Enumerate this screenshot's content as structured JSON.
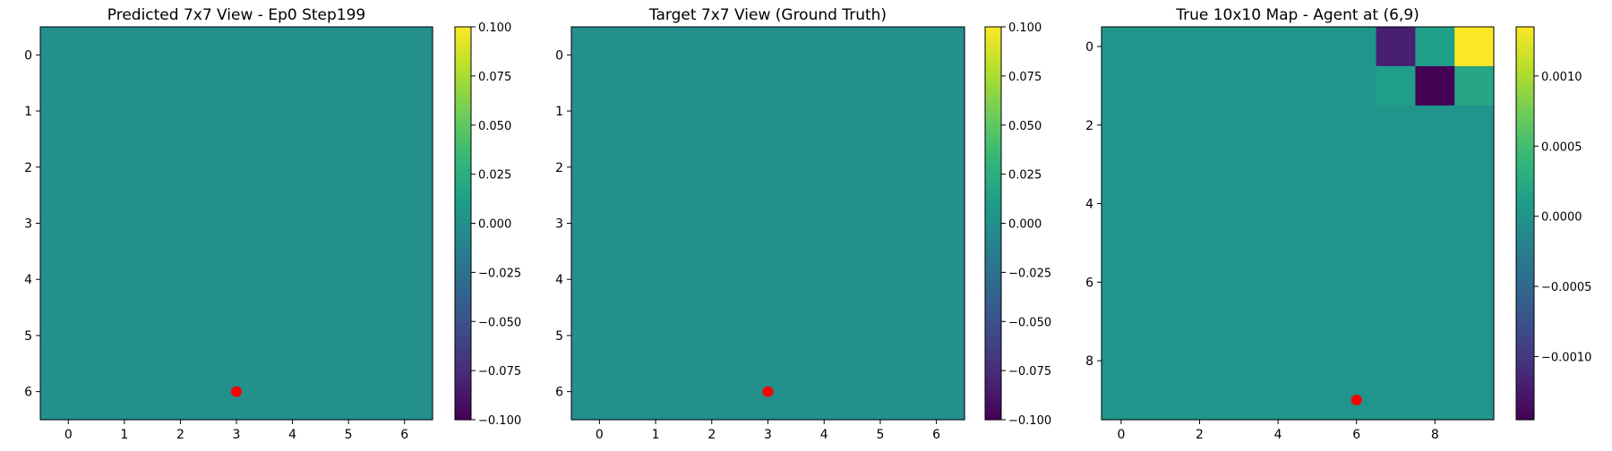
{
  "chart_data": [
    {
      "type": "heatmap",
      "title": "Predicted 7x7 View - Ep0 Step199",
      "xticks": [
        "0",
        "1",
        "2",
        "3",
        "4",
        "5",
        "6"
      ],
      "yticks": [
        "0",
        "1",
        "2",
        "3",
        "4",
        "5",
        "6"
      ],
      "grid_size": [
        7,
        7
      ],
      "values": [
        [
          0,
          0,
          0,
          0,
          0,
          0,
          0
        ],
        [
          0,
          0,
          0,
          0,
          0,
          0,
          0
        ],
        [
          0,
          0,
          0,
          0,
          0,
          0,
          0
        ],
        [
          0,
          0,
          0,
          0,
          0,
          0,
          0
        ],
        [
          0,
          0,
          0,
          0,
          0,
          0,
          0
        ],
        [
          0,
          0,
          0,
          0,
          0,
          0,
          0
        ],
        [
          0,
          0,
          0,
          0,
          0,
          0,
          0
        ]
      ],
      "marker": {
        "x": 3,
        "y": 6,
        "color": "#ff0000"
      },
      "colorbar": {
        "min": -0.1,
        "max": 0.1,
        "ticks": [
          "−0.100",
          "−0.075",
          "−0.050",
          "−0.025",
          "0.000",
          "0.025",
          "0.050",
          "0.075",
          "0.100"
        ],
        "tick_values": [
          -0.1,
          -0.075,
          -0.05,
          -0.025,
          0,
          0.025,
          0.05,
          0.075,
          0.1
        ]
      },
      "colormap": "viridis"
    },
    {
      "type": "heatmap",
      "title": "Target 7x7 View (Ground Truth)",
      "xticks": [
        "0",
        "1",
        "2",
        "3",
        "4",
        "5",
        "6"
      ],
      "yticks": [
        "0",
        "1",
        "2",
        "3",
        "4",
        "5",
        "6"
      ],
      "grid_size": [
        7,
        7
      ],
      "values": [
        [
          0,
          0,
          0,
          0,
          0,
          0,
          0
        ],
        [
          0,
          0,
          0,
          0,
          0,
          0,
          0
        ],
        [
          0,
          0,
          0,
          0,
          0,
          0,
          0
        ],
        [
          0,
          0,
          0,
          0,
          0,
          0,
          0
        ],
        [
          0,
          0,
          0,
          0,
          0,
          0,
          0
        ],
        [
          0,
          0,
          0,
          0,
          0,
          0,
          0
        ],
        [
          0,
          0,
          0,
          0,
          0,
          0,
          0
        ]
      ],
      "marker": {
        "x": 3,
        "y": 6,
        "color": "#ff0000"
      },
      "colorbar": {
        "min": -0.1,
        "max": 0.1,
        "ticks": [
          "−0.100",
          "−0.075",
          "−0.050",
          "−0.025",
          "0.000",
          "0.025",
          "0.050",
          "0.075",
          "0.100"
        ],
        "tick_values": [
          -0.1,
          -0.075,
          -0.05,
          -0.025,
          0,
          0.025,
          0.05,
          0.075,
          0.1
        ]
      },
      "colormap": "viridis"
    },
    {
      "type": "heatmap",
      "title": "True 10x10 Map - Agent at (6,9)",
      "xticks": [
        "0",
        "2",
        "4",
        "6",
        "8"
      ],
      "yticks": [
        "0",
        "2",
        "4",
        "6",
        "8"
      ],
      "grid_size": [
        10,
        10
      ],
      "values": [
        [
          0,
          0,
          0,
          0,
          0,
          0,
          0,
          -0.0012,
          0.0001,
          0.00135
        ],
        [
          0,
          0,
          0,
          0,
          0,
          0,
          0,
          0.0001,
          -0.00145,
          0.0002
        ],
        [
          0,
          0,
          0,
          0,
          0,
          0,
          0,
          0,
          0,
          0
        ],
        [
          0,
          0,
          0,
          0,
          0,
          0,
          0,
          0,
          0,
          0
        ],
        [
          0,
          0,
          0,
          0,
          0,
          0,
          0,
          0,
          0,
          0
        ],
        [
          0,
          0,
          0,
          0,
          0,
          0,
          0,
          0,
          0,
          0
        ],
        [
          0,
          0,
          0,
          0,
          0,
          0,
          0,
          0,
          0,
          0
        ],
        [
          0,
          0,
          0,
          0,
          0,
          0,
          0,
          0,
          0,
          0
        ],
        [
          0,
          0,
          0,
          0,
          0,
          0,
          0,
          0,
          0,
          0
        ],
        [
          0,
          0,
          0,
          0,
          0,
          0,
          0,
          0,
          0,
          0
        ]
      ],
      "marker": {
        "x": 6,
        "y": 9,
        "color": "#ff0000"
      },
      "colorbar": {
        "min": -0.00145,
        "max": 0.00135,
        "ticks": [
          "−0.0010",
          "−0.0005",
          "0.0000",
          "0.0005",
          "0.0010"
        ],
        "tick_values": [
          -0.001,
          -0.0005,
          0,
          0.0005,
          0.001
        ]
      },
      "colormap": "viridis"
    }
  ]
}
